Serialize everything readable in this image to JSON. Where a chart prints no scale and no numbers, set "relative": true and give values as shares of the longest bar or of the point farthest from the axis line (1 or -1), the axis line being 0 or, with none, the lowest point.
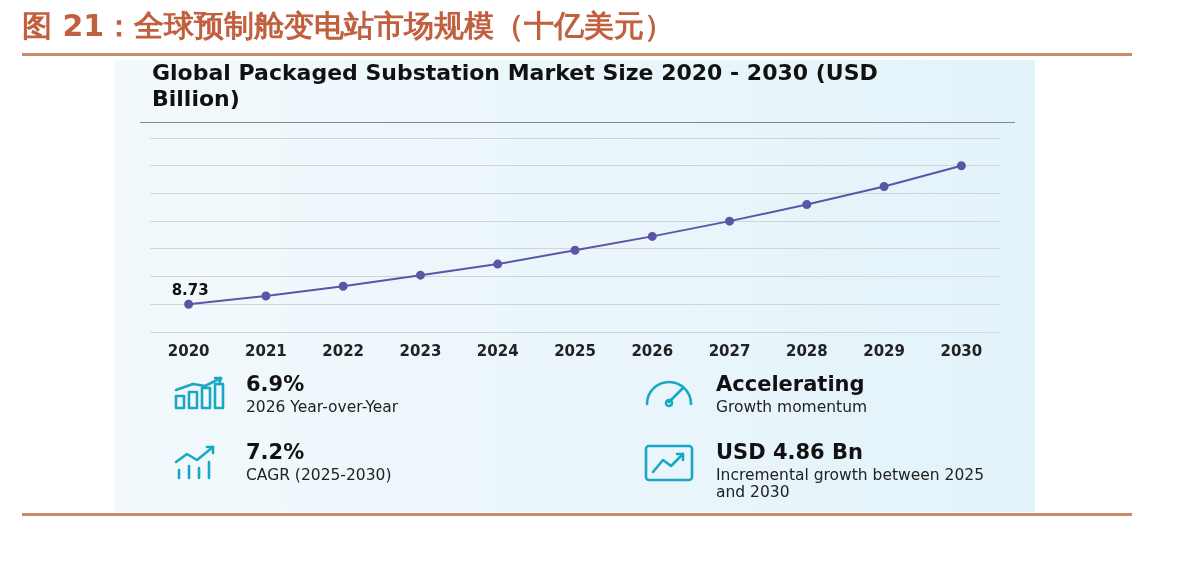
{
  "chart_data": {
    "type": "line",
    "title": "图 21：全球预制舱变电站市场规模（十亿美元）",
    "subtitle": "Global Packaged Substation Market Size 2020 - 2030 (USD Billion)",
    "categories": [
      "2020",
      "2021",
      "2022",
      "2023",
      "2024",
      "2025",
      "2026",
      "2027",
      "2028",
      "2029",
      "2030"
    ],
    "relative": true,
    "series": [
      {
        "color": "#5b55a8",
        "values": [
          0,
          0.06,
          0.13,
          0.21,
          0.29,
          0.39,
          0.49,
          0.6,
          0.72,
          0.85,
          1
        ]
      }
    ],
    "marker": "circle",
    "grid": "y",
    "legend": false,
    "annotations": [
      {
        "text": "8.73",
        "x": "2020",
        "y": 0
      },
      "6.9%",
      "2026 Year-over-Year",
      "Accelerating",
      "Growth momentum",
      "7.2%",
      "CAGR (2025-2030)",
      "USD 4.86 Bn",
      "Incremental growth between 2025 and 2030"
    ]
  }
}
